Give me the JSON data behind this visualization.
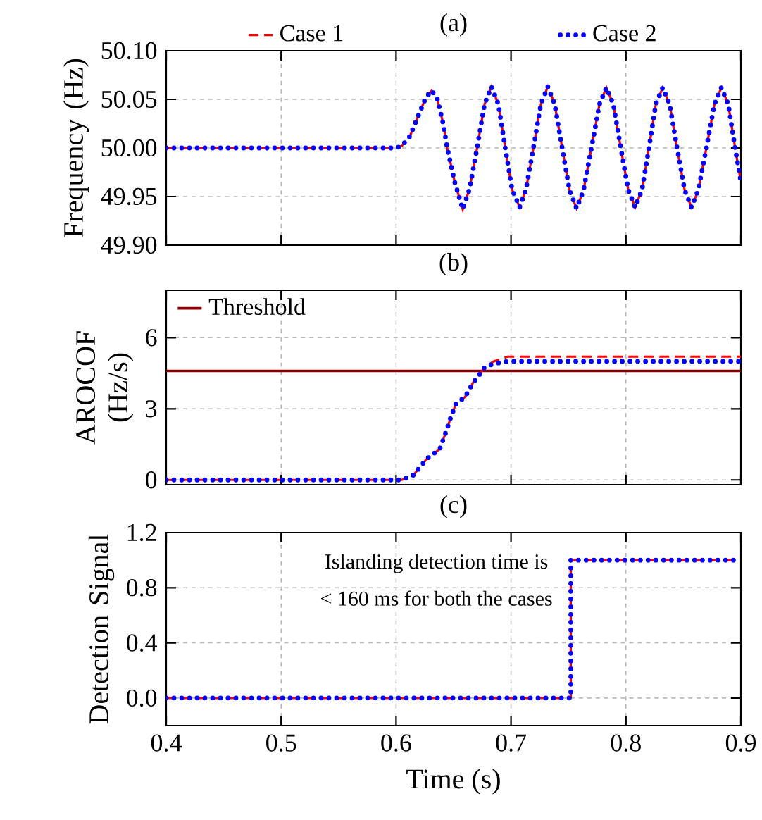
{
  "chart_data": [
    {
      "type": "line",
      "title": "(a)",
      "ylabel": "Frequency (Hz)",
      "xlim": [
        0.4,
        0.9
      ],
      "xticks": [
        0.4,
        0.5,
        0.6,
        0.7,
        0.8,
        0.9
      ],
      "ylim": [
        49.9,
        50.1
      ],
      "yticks": [
        {
          "value": 49.9,
          "label": "49.90"
        },
        {
          "value": 49.95,
          "label": "49.95"
        },
        {
          "value": 50,
          "label": "50.00"
        },
        {
          "value": 50.05,
          "label": "50.05"
        },
        {
          "value": 50.1,
          "label": "50.10"
        }
      ],
      "tick_labels": "y",
      "grid": true,
      "legend": "top",
      "x": [
        0.4,
        0.45,
        0.5,
        0.55,
        0.6,
        0.605,
        0.612,
        0.62,
        0.626,
        0.631,
        0.636,
        0.641,
        0.6445,
        0.651,
        0.658,
        0.664,
        0.6705,
        0.677,
        0.683,
        0.689,
        0.695,
        0.701,
        0.7075,
        0.713,
        0.7195,
        0.726,
        0.732,
        0.738,
        0.7445,
        0.751,
        0.757,
        0.763,
        0.77,
        0.777,
        0.783,
        0.789,
        0.7955,
        0.802,
        0.808,
        0.814,
        0.82,
        0.826,
        0.832,
        0.838,
        0.8445,
        0.851,
        0.857,
        0.863,
        0.87,
        0.877,
        0.883,
        0.889,
        0.895,
        0.9
      ],
      "series": [
        {
          "name": "Case 1",
          "color": "#ff0000",
          "line_style": "dashed",
          "values": [
            50.0,
            50.0,
            50.0,
            50.0,
            50.0,
            50.002,
            50.012,
            50.035,
            50.052,
            50.059,
            50.05,
            50.025,
            50.0,
            49.965,
            49.937,
            49.958,
            50.0,
            50.045,
            50.063,
            50.045,
            50.0,
            49.957,
            49.939,
            49.957,
            50.0,
            50.045,
            50.063,
            50.045,
            50.0,
            49.956,
            49.938,
            49.956,
            50.0,
            50.045,
            50.062,
            50.045,
            50.0,
            49.957,
            49.939,
            49.957,
            50.0,
            50.045,
            50.062,
            50.045,
            50.0,
            49.957,
            49.939,
            49.957,
            50.0,
            50.045,
            50.062,
            50.045,
            50.0,
            49.965
          ]
        },
        {
          "name": "Case 2",
          "color": "#0000ff",
          "line_style": "dotted",
          "values": [
            50.0,
            50.0,
            50.0,
            50.0,
            50.0,
            50.002,
            50.012,
            50.035,
            50.052,
            50.059,
            50.05,
            50.025,
            50.0,
            49.965,
            49.937,
            49.958,
            50.0,
            50.045,
            50.063,
            50.045,
            50.0,
            49.957,
            49.939,
            49.957,
            50.0,
            50.045,
            50.063,
            50.045,
            50.0,
            49.956,
            49.938,
            49.956,
            50.0,
            50.045,
            50.062,
            50.045,
            50.0,
            49.957,
            49.939,
            49.957,
            50.0,
            50.045,
            50.062,
            50.045,
            50.0,
            49.957,
            49.939,
            49.957,
            50.0,
            50.045,
            50.062,
            50.045,
            50.0,
            49.965
          ]
        }
      ]
    },
    {
      "type": "line",
      "title": "(b)",
      "ylabel": "AROCOF (Hz/s)",
      "xlim": [
        0.4,
        0.9
      ],
      "xticks": [
        0.4,
        0.5,
        0.6,
        0.7,
        0.8,
        0.9
      ],
      "ylim": [
        -0.2,
        8
      ],
      "yticks": [
        0,
        3,
        6
      ],
      "tick_labels": "y",
      "grid": true,
      "legend": "top left",
      "x": [
        0.4,
        0.5,
        0.6,
        0.605,
        0.615,
        0.627,
        0.638,
        0.644,
        0.648,
        0.652,
        0.66,
        0.667,
        0.672,
        0.677,
        0.685,
        0.697,
        0.75,
        0.8,
        0.85,
        0.9
      ],
      "series": [
        {
          "color": "#ff0000",
          "line_style": "dashed",
          "values": [
            0,
            0,
            0,
            0,
            0.2,
            0.9,
            1.3,
            2.1,
            2.7,
            3.2,
            3.5,
            4.1,
            4.4,
            4.75,
            5.0,
            5.2,
            5.2,
            5.2,
            5.2,
            5.2
          ]
        },
        {
          "color": "#0000ff",
          "line_style": "dotted",
          "values": [
            0,
            0,
            0,
            0,
            0.2,
            0.9,
            1.3,
            2.1,
            2.7,
            3.2,
            3.5,
            4.1,
            4.4,
            4.75,
            4.9,
            5.0,
            5.0,
            5.0,
            5.0,
            5.0
          ]
        }
      ],
      "ref_lines": [
        {
          "axis": "y",
          "value": 4.6,
          "label": "Threshold",
          "color": "#8b0000"
        }
      ]
    },
    {
      "type": "step",
      "title": "(c)",
      "xlabel": "Time (s)",
      "ylabel": "Detection Signal",
      "xlim": [
        0.4,
        0.9
      ],
      "xticks": [
        0.4,
        0.5,
        0.6,
        0.7,
        0.8,
        0.9
      ],
      "ylim": [
        -0.2,
        1.2
      ],
      "yticks": [
        {
          "value": 0,
          "label": "0.0"
        },
        0.4,
        0.8,
        1.2
      ],
      "grid": true,
      "x": [
        0.4,
        0.752,
        0.9
      ],
      "series": [
        {
          "color": "#ff0000",
          "line_style": "dashed",
          "values": [
            0,
            1,
            1
          ]
        },
        {
          "color": "#0000ff",
          "line_style": "dotted",
          "values": [
            0,
            1,
            1
          ]
        }
      ],
      "annotations": [
        "Islanding detection time is",
        "< 160 ms for both the cases"
      ]
    }
  ]
}
